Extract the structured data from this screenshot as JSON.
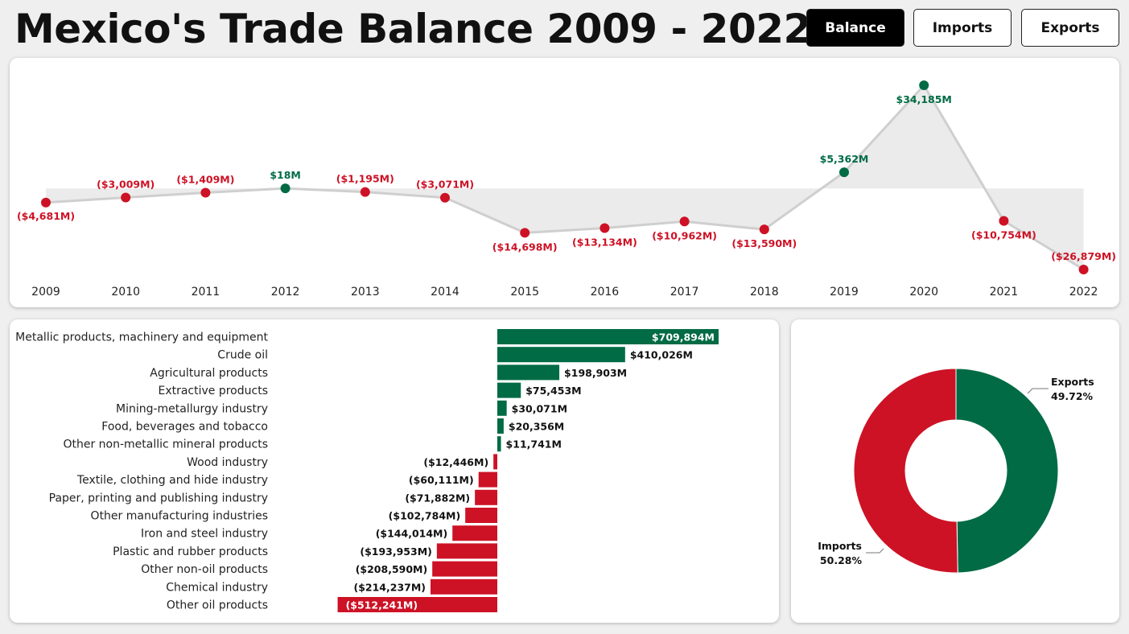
{
  "page": {
    "title": "Mexico's Trade Balance 2009 - 2022"
  },
  "buttons": [
    {
      "label": "Balance",
      "active": true
    },
    {
      "label": "Imports",
      "active": false
    },
    {
      "label": "Exports",
      "active": false
    }
  ],
  "colors": {
    "positive": "#006b45",
    "negative": "#cd1225",
    "line": "#cfcfcf",
    "area": "#ebebeb"
  },
  "chart_data": [
    {
      "type": "line",
      "x": [
        "2009",
        "2010",
        "2011",
        "2012",
        "2013",
        "2014",
        "2015",
        "2016",
        "2017",
        "2018",
        "2019",
        "2020",
        "2021",
        "2022"
      ],
      "values": [
        -4681,
        -3009,
        -1409,
        18,
        -1195,
        -3071,
        -14698,
        -13134,
        -10962,
        -13590,
        5362,
        34185,
        -10754,
        -26879
      ],
      "labels": [
        "($4,681M)",
        "($3,009M)",
        "($1,409M)",
        "$18M",
        "($1,195M)",
        "($3,071M)",
        "($14,698M)",
        "($13,134M)",
        "($10,962M)",
        "($13,590M)",
        "$5,362M",
        "$34,185M",
        "($10,754M)",
        "($26,879M)"
      ],
      "unit": "USD millions",
      "area_baseline": 0,
      "grid": false
    },
    {
      "type": "bar",
      "orientation": "horizontal",
      "categories": [
        "Metallic products, machinery and equipment",
        "Crude oil",
        "Agricultural products",
        "Extractive products",
        "Mining-metallurgy industry",
        "Food, beverages and tobacco",
        "Other non-metallic mineral products",
        "Wood industry",
        "Textile, clothing and hide industry",
        "Paper, printing and publishing industry",
        "Other manufacturing industries",
        "Iron and steel industry",
        "Plastic and rubber products",
        "Other non-oil products",
        "Chemical industry",
        "Other oil products"
      ],
      "values": [
        709894,
        410026,
        198903,
        75453,
        30071,
        20356,
        11741,
        -12446,
        -60111,
        -71882,
        -102784,
        -144014,
        -193953,
        -208590,
        -214237,
        -512241
      ],
      "labels": [
        "$709,894M",
        "$410,026M",
        "$198,903M",
        "$75,453M",
        "$30,071M",
        "$20,356M",
        "$11,741M",
        "($12,446M)",
        "($60,111M)",
        "($71,882M)",
        "($102,784M)",
        "($144,014M)",
        "($193,953M)",
        "($208,590M)",
        "($214,237M)",
        "($512,241M)"
      ],
      "unit": "USD millions"
    },
    {
      "type": "pie",
      "donut": true,
      "slices": [
        {
          "name": "Exports",
          "value": 49.72,
          "label": "49.72%",
          "color": "#006b45"
        },
        {
          "name": "Imports",
          "value": 50.28,
          "label": "50.28%",
          "color": "#cd1225"
        }
      ]
    }
  ]
}
